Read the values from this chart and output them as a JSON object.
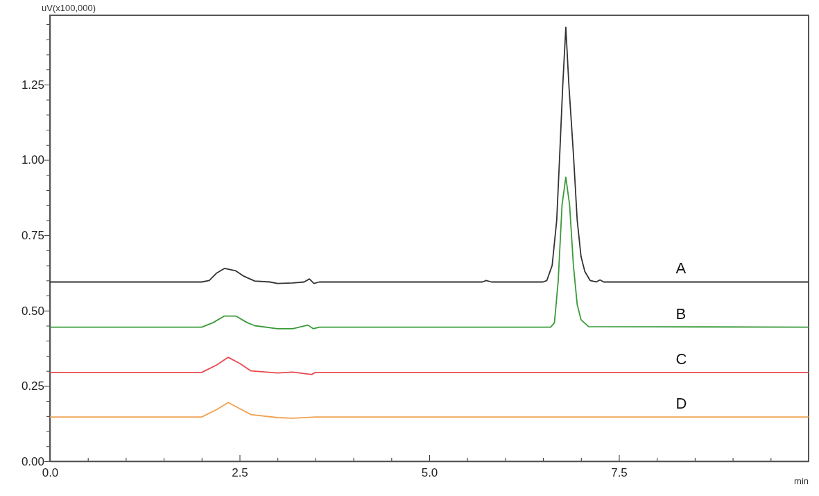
{
  "chart_data": {
    "type": "line",
    "ylabel": "uV(x100,000)",
    "xlabel": "min",
    "xlim": [
      0,
      10
    ],
    "ylim": [
      0,
      1.48
    ],
    "xticks": [
      {
        "value": 0,
        "label": "0.0"
      },
      {
        "value": 0.5,
        "label": null
      },
      {
        "value": 1,
        "label": null
      },
      {
        "value": 1.5,
        "label": null
      },
      {
        "value": 2,
        "label": null
      },
      {
        "value": 2.5,
        "label": "2.5"
      },
      {
        "value": 3,
        "label": null
      },
      {
        "value": 3.5,
        "label": null
      },
      {
        "value": 4,
        "label": null
      },
      {
        "value": 4.5,
        "label": null
      },
      {
        "value": 5,
        "label": "5.0"
      },
      {
        "value": 5.5,
        "label": null
      },
      {
        "value": 6,
        "label": null
      },
      {
        "value": 6.5,
        "label": null
      },
      {
        "value": 7,
        "label": null
      },
      {
        "value": 7.5,
        "label": "7.5"
      },
      {
        "value": 8,
        "label": null
      },
      {
        "value": 8.5,
        "label": null
      },
      {
        "value": 9,
        "label": null
      },
      {
        "value": 9.5,
        "label": null
      },
      {
        "value": 10,
        "label": null
      }
    ],
    "yticks": [
      {
        "value": 0,
        "label": "0.00"
      },
      {
        "value": 0.05,
        "label": null
      },
      {
        "value": 0.1,
        "label": null
      },
      {
        "value": 0.15,
        "label": null
      },
      {
        "value": 0.2,
        "label": null
      },
      {
        "value": 0.25,
        "label": "0.25"
      },
      {
        "value": 0.3,
        "label": null
      },
      {
        "value": 0.35,
        "label": null
      },
      {
        "value": 0.4,
        "label": null
      },
      {
        "value": 0.45,
        "label": null
      },
      {
        "value": 0.5,
        "label": "0.50"
      },
      {
        "value": 0.55,
        "label": null
      },
      {
        "value": 0.6,
        "label": null
      },
      {
        "value": 0.65,
        "label": null
      },
      {
        "value": 0.7,
        "label": null
      },
      {
        "value": 0.75,
        "label": "0.75"
      },
      {
        "value": 0.8,
        "label": null
      },
      {
        "value": 0.85,
        "label": null
      },
      {
        "value": 0.9,
        "label": null
      },
      {
        "value": 0.95,
        "label": null
      },
      {
        "value": 1,
        "label": "1.00"
      },
      {
        "value": 1.05,
        "label": null
      },
      {
        "value": 1.1,
        "label": null
      },
      {
        "value": 1.15,
        "label": null
      },
      {
        "value": 1.2,
        "label": null
      },
      {
        "value": 1.25,
        "label": "1.25"
      },
      {
        "value": 1.3,
        "label": null
      },
      {
        "value": 1.35,
        "label": null
      },
      {
        "value": 1.4,
        "label": null
      },
      {
        "value": 1.45,
        "label": null
      }
    ],
    "grid": false,
    "marker": "none",
    "line_style": "solid",
    "series": [
      {
        "name": "A",
        "color": "#333333",
        "x": [
          0,
          2.0,
          2.1,
          2.2,
          2.3,
          2.45,
          2.55,
          2.7,
          2.9,
          3.0,
          3.2,
          3.35,
          3.42,
          3.48,
          3.55,
          5.7,
          5.75,
          5.82,
          6.5,
          6.55,
          6.62,
          6.68,
          6.72,
          6.76,
          6.8,
          6.84,
          6.9,
          6.95,
          7.0,
          7.05,
          7.12,
          7.2,
          7.25,
          7.3,
          10
        ],
        "values": [
          0.595,
          0.595,
          0.6,
          0.625,
          0.64,
          0.632,
          0.615,
          0.598,
          0.595,
          0.59,
          0.592,
          0.595,
          0.605,
          0.59,
          0.595,
          0.595,
          0.6,
          0.595,
          0.595,
          0.6,
          0.65,
          0.8,
          1.02,
          1.25,
          1.44,
          1.25,
          1.02,
          0.8,
          0.68,
          0.63,
          0.6,
          0.595,
          0.602,
          0.595,
          0.595
        ]
      },
      {
        "name": "B",
        "color": "#3a9a3a",
        "x": [
          0,
          2.0,
          2.15,
          2.3,
          2.45,
          2.6,
          2.7,
          3.0,
          3.2,
          3.4,
          3.47,
          3.55,
          6.6,
          6.65,
          6.7,
          6.75,
          6.8,
          6.85,
          6.9,
          6.95,
          7.0,
          7.1,
          10
        ],
        "values": [
          0.445,
          0.445,
          0.46,
          0.482,
          0.482,
          0.46,
          0.45,
          0.44,
          0.44,
          0.452,
          0.44,
          0.445,
          0.445,
          0.46,
          0.6,
          0.85,
          0.943,
          0.85,
          0.65,
          0.52,
          0.47,
          0.447,
          0.445
        ]
      },
      {
        "name": "C",
        "color": "#e8474f",
        "x": [
          0,
          2.0,
          2.2,
          2.35,
          2.5,
          2.65,
          3.0,
          3.2,
          3.45,
          3.5,
          10
        ],
        "values": [
          0.295,
          0.295,
          0.32,
          0.345,
          0.325,
          0.3,
          0.293,
          0.296,
          0.288,
          0.295,
          0.295
        ]
      },
      {
        "name": "D",
        "color": "#f0a050",
        "x": [
          0,
          2.0,
          2.2,
          2.35,
          2.5,
          2.65,
          3.0,
          3.2,
          3.5,
          10
        ],
        "values": [
          0.147,
          0.147,
          0.172,
          0.195,
          0.175,
          0.155,
          0.145,
          0.143,
          0.147,
          0.147
        ]
      }
    ]
  }
}
